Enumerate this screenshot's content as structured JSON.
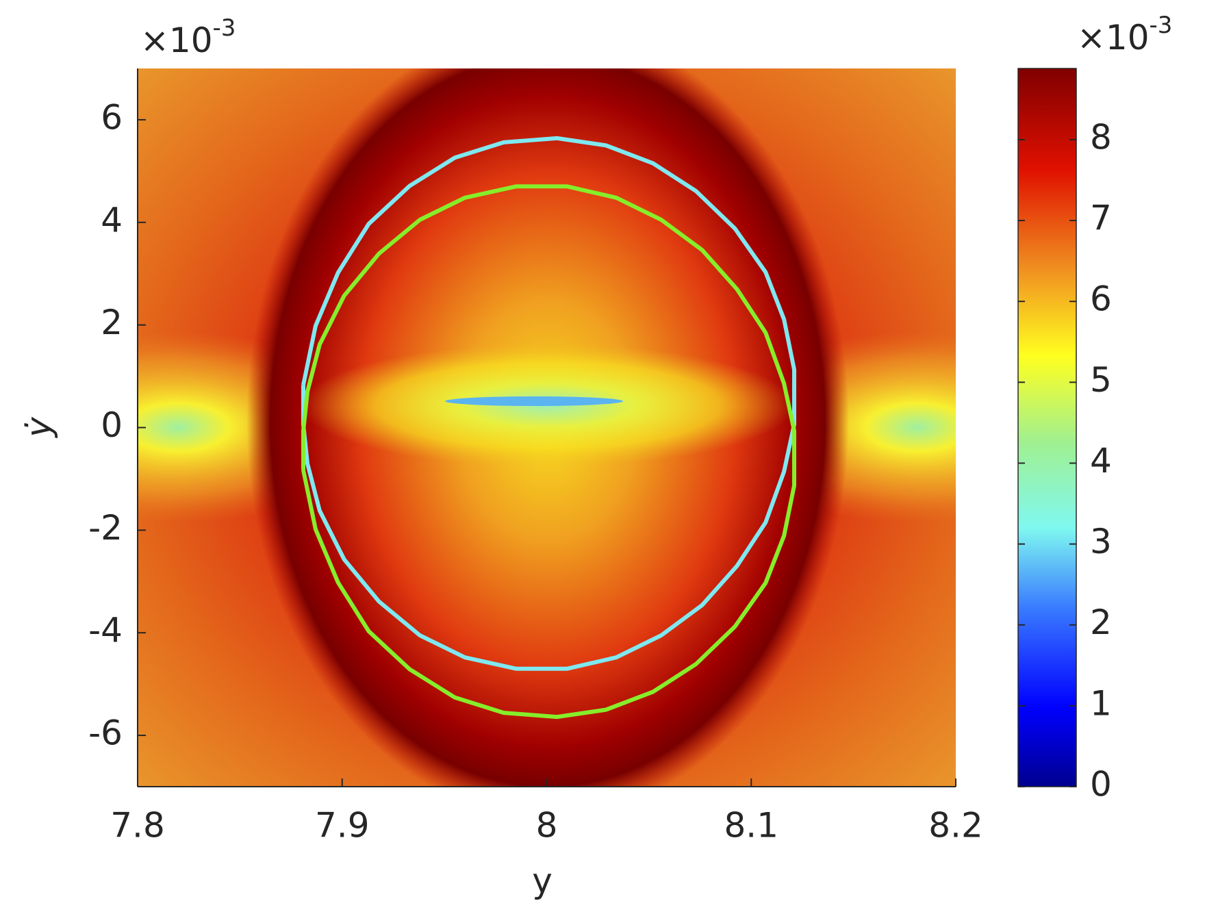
{
  "chart_data": {
    "type": "line",
    "xlabel": "y",
    "ylabel": "ẏ",
    "y_multiplier": {
      "base": "×10",
      "exponent": "-3"
    },
    "xlim": [
      7.8,
      8.2
    ],
    "xticks": [
      7.8,
      7.9,
      8,
      8.1,
      8.2
    ],
    "ylim": [
      -7,
      7
    ],
    "yticks": [
      -6,
      -4,
      -2,
      0,
      2,
      4,
      6
    ],
    "colorbar": {
      "multiplier": {
        "base": "×10",
        "exponent": "-3"
      },
      "lim": [
        0,
        8.88
      ],
      "ticks": [
        0,
        1,
        2,
        3,
        4,
        5,
        6,
        7,
        8
      ],
      "colormap": "jet"
    },
    "series": [
      {
        "color": "#7fe8f0",
        "x": [
          7.881,
          7.887,
          7.898,
          7.913,
          7.933,
          7.955,
          7.979,
          8.005,
          8.029,
          8.052,
          8.073,
          8.092,
          8.107,
          8.116,
          8.121,
          8.121,
          8.116,
          8.107,
          8.093,
          8.076,
          8.056,
          8.034,
          8.01,
          7.985,
          7.96,
          7.938,
          7.918,
          7.901,
          7.889,
          7.883,
          7.881,
          7.881
        ],
        "y": [
          0.83,
          1.98,
          3.02,
          3.97,
          4.71,
          5.26,
          5.56,
          5.64,
          5.5,
          5.15,
          4.61,
          3.88,
          3.03,
          2.11,
          1.13,
          0.06,
          -0.86,
          -1.85,
          -2.7,
          -3.46,
          -4.05,
          -4.48,
          -4.7,
          -4.7,
          -4.48,
          -4.05,
          -3.39,
          -2.57,
          -1.62,
          -0.7,
          0.06,
          0.83
        ]
      },
      {
        "color": "#86ee2a",
        "x": [
          7.881,
          7.887,
          7.898,
          7.913,
          7.933,
          7.955,
          7.979,
          8.005,
          8.029,
          8.052,
          8.073,
          8.092,
          8.107,
          8.116,
          8.121,
          8.121,
          8.116,
          8.107,
          8.093,
          8.076,
          8.056,
          8.034,
          8.01,
          7.985,
          7.96,
          7.938,
          7.918,
          7.901,
          7.889,
          7.883,
          7.881,
          7.881
        ],
        "y": [
          -0.83,
          -1.98,
          -3.02,
          -3.97,
          -4.71,
          -5.26,
          -5.56,
          -5.64,
          -5.5,
          -5.15,
          -4.61,
          -3.88,
          -3.03,
          -2.11,
          -1.13,
          -0.06,
          0.86,
          1.85,
          2.7,
          3.46,
          4.05,
          4.48,
          4.7,
          4.7,
          4.48,
          4.05,
          3.39,
          2.57,
          1.62,
          0.7,
          -0.06,
          -0.83
        ]
      }
    ]
  }
}
